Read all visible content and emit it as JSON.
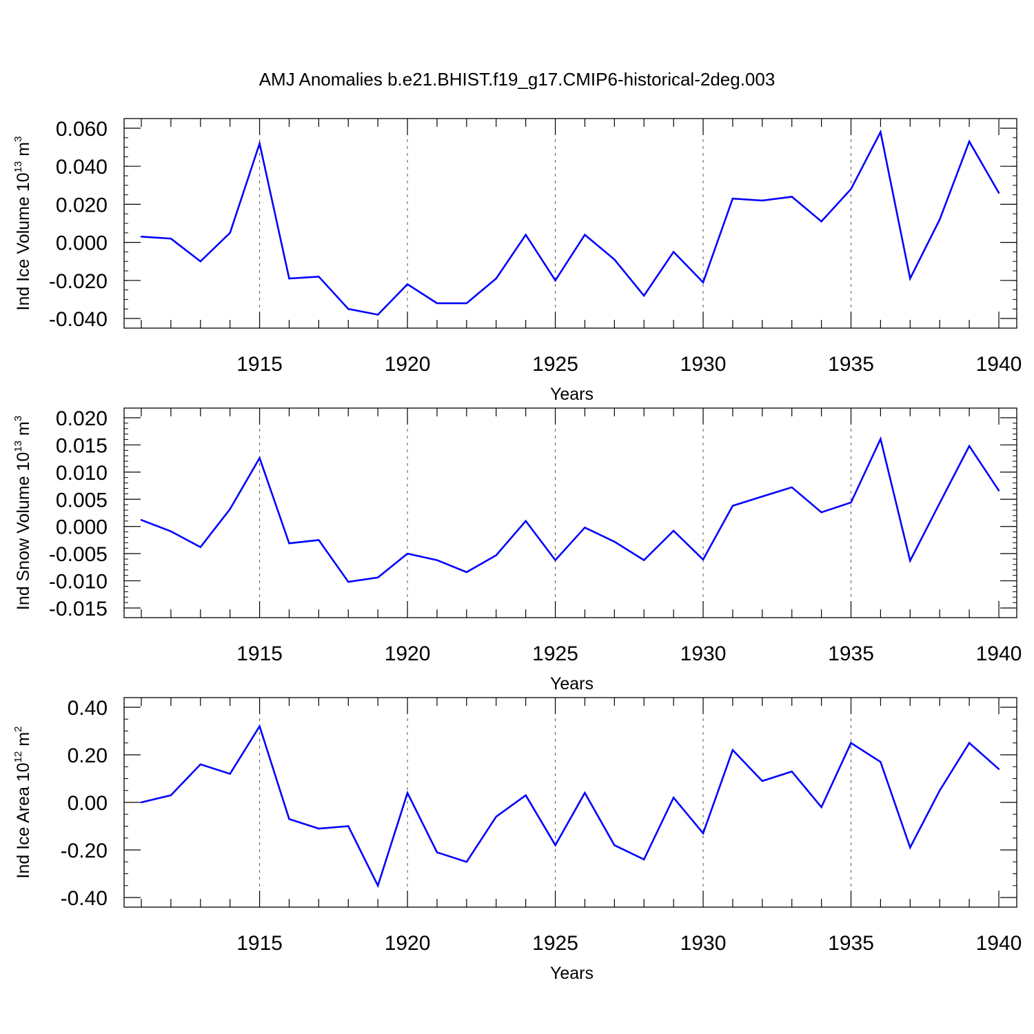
{
  "title": "AMJ Anomalies b.e21.BHIST.f19_g17.CMIP6-historical-2deg.003",
  "colors": {
    "line": "#0000ff",
    "axis": "#000000",
    "grid": "#555555",
    "background": "#ffffff"
  },
  "chart_data": [
    {
      "type": "line",
      "xlabel": "Years",
      "ylabel_prefix": "Ind Ice Volume 10",
      "ylabel_exponent": "13",
      "ylabel_unit": " m",
      "ylabel_unit_exponent": "3",
      "xlim": [
        1911,
        1940
      ],
      "ylim": [
        -0.04,
        0.06
      ],
      "x_major_ticks": [
        1915,
        1920,
        1925,
        1930,
        1935,
        1940
      ],
      "x_tick_labels": [
        "1915",
        "1920",
        "1925",
        "1930",
        "1935",
        "1940"
      ],
      "y_major_ticks": [
        -0.04,
        -0.02,
        0.0,
        0.02,
        0.04,
        0.06
      ],
      "y_tick_labels": [
        "-0.040",
        "-0.020",
        "0.000",
        "0.020",
        "0.040",
        "0.060"
      ],
      "y_minor_step": 0.005,
      "grid": "dashed vertical at major x ticks",
      "x": [
        1911,
        1912,
        1913,
        1914,
        1915,
        1916,
        1917,
        1918,
        1919,
        1920,
        1921,
        1922,
        1923,
        1924,
        1925,
        1926,
        1927,
        1928,
        1929,
        1930,
        1931,
        1932,
        1933,
        1934,
        1935,
        1936,
        1937,
        1938,
        1939,
        1940
      ],
      "values": [
        0.003,
        0.002,
        -0.01,
        0.005,
        0.052,
        -0.019,
        -0.018,
        -0.035,
        -0.038,
        -0.022,
        -0.032,
        -0.032,
        -0.019,
        0.004,
        -0.02,
        0.004,
        -0.009,
        -0.028,
        -0.005,
        -0.021,
        0.023,
        0.022,
        0.024,
        0.011,
        0.028,
        0.058,
        -0.019,
        0.012,
        0.053,
        0.026
      ]
    },
    {
      "type": "line",
      "xlabel": "Years",
      "ylabel_prefix": "Ind Snow Volume 10",
      "ylabel_exponent": "13",
      "ylabel_unit": " m",
      "ylabel_unit_exponent": "3",
      "xlim": [
        1911,
        1940
      ],
      "ylim": [
        -0.015,
        0.02
      ],
      "x_major_ticks": [
        1915,
        1920,
        1925,
        1930,
        1935,
        1940
      ],
      "x_tick_labels": [
        "1915",
        "1920",
        "1925",
        "1930",
        "1935",
        "1940"
      ],
      "y_major_ticks": [
        -0.015,
        -0.01,
        -0.005,
        0.0,
        0.005,
        0.01,
        0.015,
        0.02
      ],
      "y_tick_labels": [
        "-0.015",
        "-0.010",
        "-0.005",
        "0.000",
        "0.005",
        "0.010",
        "0.015",
        "0.020"
      ],
      "y_minor_step": 0.001,
      "grid": "dashed vertical at major x ticks",
      "x": [
        1911,
        1912,
        1913,
        1914,
        1915,
        1916,
        1917,
        1918,
        1919,
        1920,
        1921,
        1922,
        1923,
        1924,
        1925,
        1926,
        1927,
        1928,
        1929,
        1930,
        1931,
        1932,
        1933,
        1934,
        1935,
        1936,
        1937,
        1938,
        1939,
        1940
      ],
      "values": [
        0.0012,
        -0.0009,
        -0.0038,
        0.0032,
        0.0126,
        -0.0031,
        -0.0025,
        -0.0102,
        -0.0094,
        -0.005,
        -0.0062,
        -0.0084,
        -0.0053,
        0.001,
        -0.0062,
        -0.0002,
        -0.0028,
        -0.0062,
        -0.0008,
        -0.0061,
        0.0038,
        0.0055,
        0.0072,
        0.0026,
        0.0044,
        0.0161,
        -0.0063,
        0.0043,
        0.0148,
        0.0066
      ]
    },
    {
      "type": "line",
      "xlabel": "Years",
      "ylabel_prefix": "Ind Ice Area 10",
      "ylabel_exponent": "12",
      "ylabel_unit": " m",
      "ylabel_unit_exponent": "2",
      "xlim": [
        1911,
        1940
      ],
      "ylim": [
        -0.4,
        0.4
      ],
      "x_major_ticks": [
        1915,
        1920,
        1925,
        1930,
        1935,
        1940
      ],
      "x_tick_labels": [
        "1915",
        "1920",
        "1925",
        "1930",
        "1935",
        "1940"
      ],
      "y_major_ticks": [
        -0.4,
        -0.2,
        0.0,
        0.2,
        0.4
      ],
      "y_tick_labels": [
        "-0.40",
        "-0.20",
        "0.00",
        "0.20",
        "0.40"
      ],
      "y_minor_step": 0.05,
      "grid": "dashed vertical at major x ticks",
      "x": [
        1911,
        1912,
        1913,
        1914,
        1915,
        1916,
        1917,
        1918,
        1919,
        1920,
        1921,
        1922,
        1923,
        1924,
        1925,
        1926,
        1927,
        1928,
        1929,
        1930,
        1931,
        1932,
        1933,
        1934,
        1935,
        1936,
        1937,
        1938,
        1939,
        1940
      ],
      "values": [
        0.0,
        0.03,
        0.16,
        0.12,
        0.32,
        -0.07,
        -0.11,
        -0.1,
        -0.35,
        0.04,
        -0.21,
        -0.25,
        -0.06,
        0.03,
        -0.18,
        0.04,
        -0.18,
        -0.24,
        0.02,
        -0.13,
        0.22,
        0.09,
        0.13,
        -0.02,
        0.25,
        0.17,
        -0.19,
        0.05,
        0.25,
        0.14
      ]
    }
  ]
}
